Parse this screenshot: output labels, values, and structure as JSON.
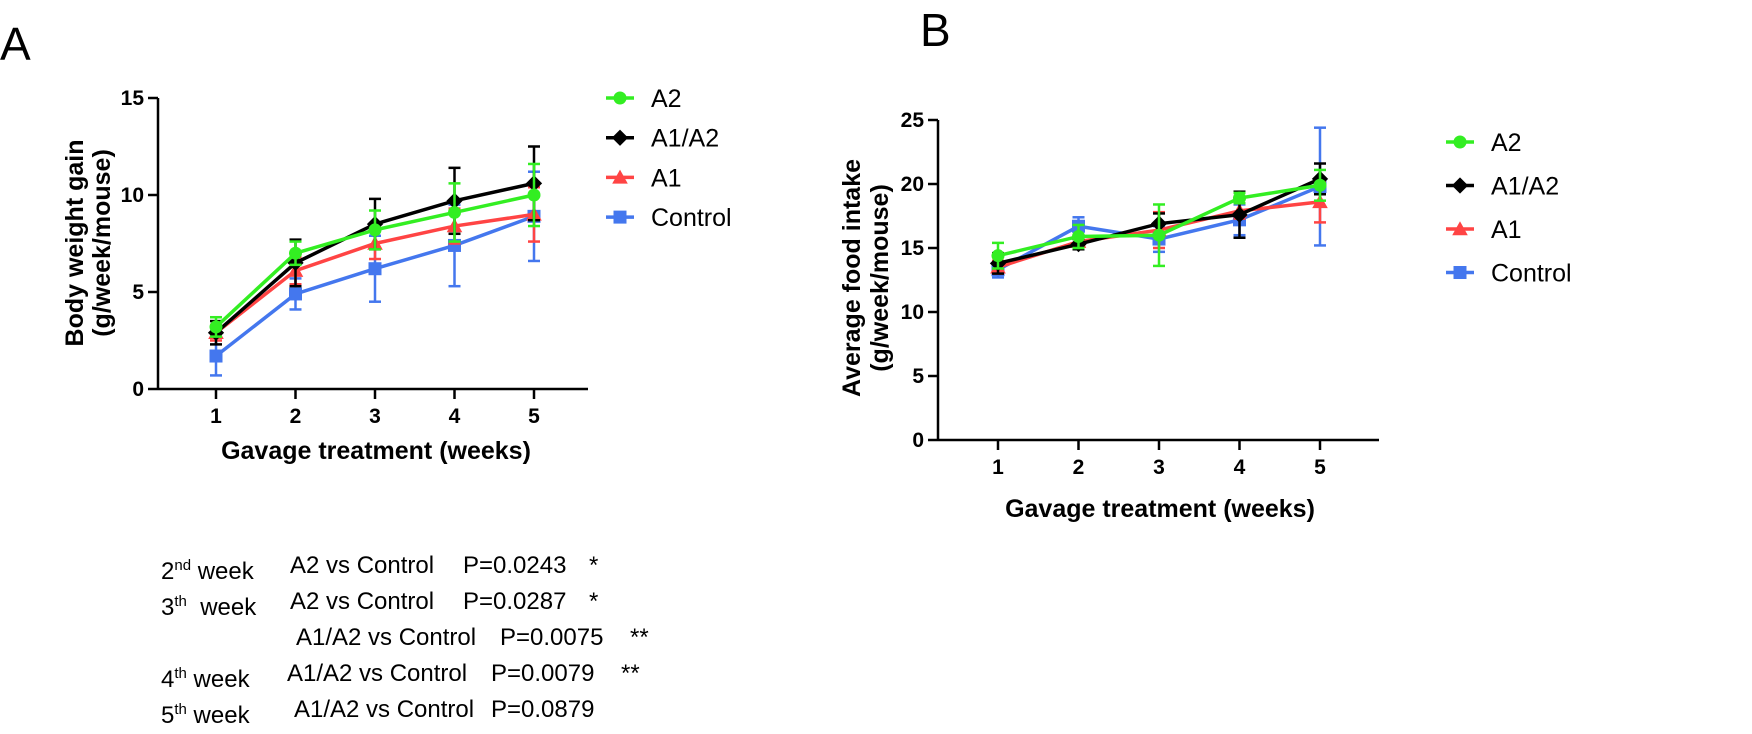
{
  "figure": {
    "panels": [
      "A",
      "B"
    ]
  },
  "colors": {
    "A2": "#33ee22",
    "A1/A2": "#000000",
    "A1": "#ff4444",
    "Control": "#4477ee"
  },
  "markers": {
    "A2": "circle",
    "A1/A2": "diamond",
    "A1": "triangle",
    "Control": "square"
  },
  "chart_data": [
    {
      "type": "line",
      "panel": "A",
      "title": "",
      "xlabel": "Gavage treatment (weeks)",
      "ylabel_line1": "Body weight gain",
      "ylabel_line2": "(g/week/mouse)",
      "x": [
        1,
        2,
        3,
        4,
        5
      ],
      "x_ticks": [
        "1",
        "2",
        "3",
        "4",
        "5"
      ],
      "ylim": [
        0,
        15
      ],
      "y_ticks": [
        "0",
        "5",
        "10",
        "15"
      ],
      "y_tick_values": [
        0,
        5,
        10,
        15
      ],
      "legend_position": "right",
      "series": [
        {
          "name": "A2",
          "values": [
            3.2,
            7.0,
            8.2,
            9.1,
            10.0
          ],
          "errors": [
            0.5,
            0.6,
            1.0,
            1.5,
            1.6
          ]
        },
        {
          "name": "A1/A2",
          "values": [
            2.9,
            6.5,
            8.5,
            9.7,
            10.6
          ],
          "errors": [
            0.6,
            1.2,
            1.3,
            1.7,
            1.9
          ]
        },
        {
          "name": "A1",
          "values": [
            2.9,
            6.1,
            7.5,
            8.4,
            9.0
          ],
          "errors": [
            0.4,
            0.7,
            0.8,
            0.9,
            1.4
          ]
        },
        {
          "name": "Control",
          "values": [
            1.7,
            4.9,
            6.2,
            7.4,
            8.9
          ],
          "errors": [
            1.0,
            0.8,
            1.7,
            2.1,
            2.3
          ]
        }
      ]
    },
    {
      "type": "line",
      "panel": "B",
      "title": "",
      "xlabel": "Gavage treatment (weeks)",
      "ylabel_line1": "Average food intake",
      "ylabel_line2": "(g/week/mouse)",
      "x": [
        1,
        2,
        3,
        4,
        5
      ],
      "x_ticks": [
        "1",
        "2",
        "3",
        "4",
        "5"
      ],
      "ylim": [
        0,
        25
      ],
      "y_ticks": [
        "0",
        "5",
        "10",
        "15",
        "20",
        "25"
      ],
      "y_tick_values": [
        0,
        5,
        10,
        15,
        20,
        25
      ],
      "legend_position": "right",
      "series": [
        {
          "name": "A2",
          "values": [
            14.4,
            15.9,
            16.0,
            18.9,
            19.9
          ],
          "errors": [
            1.0,
            0.9,
            2.4,
            0.4,
            1.2
          ]
        },
        {
          "name": "A1/A2",
          "values": [
            13.8,
            15.3,
            16.9,
            17.6,
            20.4
          ],
          "errors": [
            0.8,
            0.4,
            0.8,
            1.8,
            1.2
          ]
        },
        {
          "name": "A1",
          "values": [
            13.5,
            15.5,
            16.4,
            17.9,
            18.6
          ],
          "errors": [
            0.5,
            0.4,
            1.4,
            0.6,
            1.6
          ]
        },
        {
          "name": "Control",
          "values": [
            13.3,
            16.7,
            15.7,
            17.2,
            19.8
          ],
          "errors": [
            0.6,
            0.7,
            1.0,
            1.2,
            4.6
          ]
        }
      ]
    }
  ],
  "stats": [
    {
      "ordinal_num": "2",
      "ordinal_sup": "nd",
      "week_word": "week",
      "comparison": "A2 vs Control",
      "p_value": "P=0.0243",
      "sig": "*"
    },
    {
      "ordinal_num": "3",
      "ordinal_sup": "th",
      "week_word": "week",
      "comparison": "A2 vs Control",
      "p_value": "P=0.0287",
      "sig": "*"
    },
    {
      "ordinal_num": "",
      "ordinal_sup": "",
      "week_word": "",
      "comparison": "A1/A2 vs Control",
      "p_value": "P=0.0075",
      "sig": "**"
    },
    {
      "ordinal_num": "4",
      "ordinal_sup": "th",
      "week_word": "week",
      "comparison": "A1/A2 vs Control",
      "p_value": "P=0.0079",
      "sig": "**"
    },
    {
      "ordinal_num": "5",
      "ordinal_sup": "th",
      "week_word": "week",
      "comparison": "A1/A2 vs Control",
      "p_value": "P=0.0879",
      "sig": ""
    }
  ]
}
